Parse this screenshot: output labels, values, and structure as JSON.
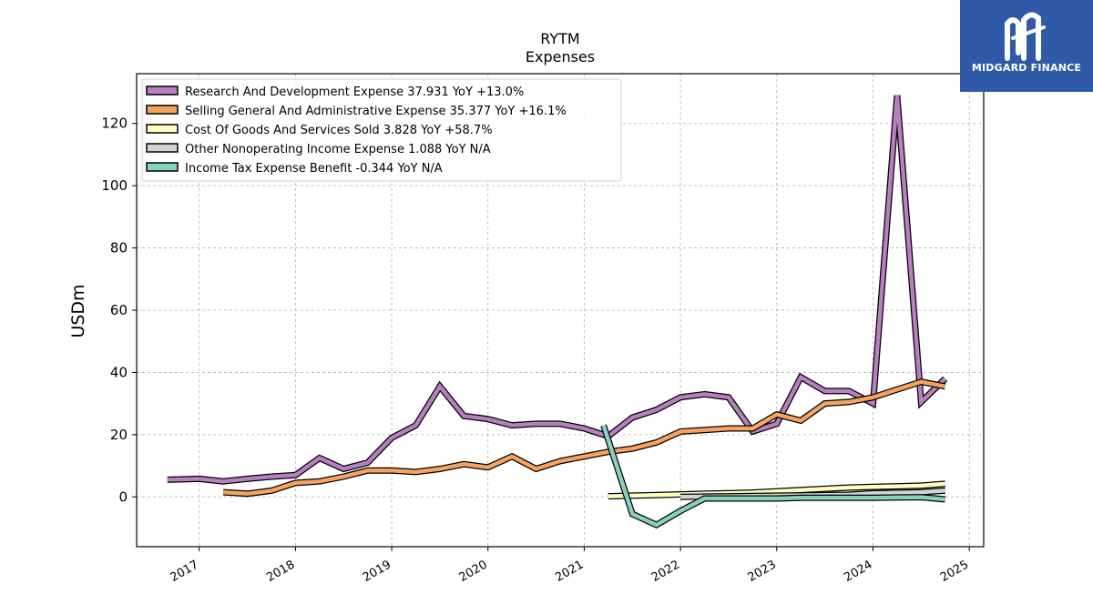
{
  "logo": {
    "text": "MIDGARD FINANCE",
    "background": "#2f5aa8"
  },
  "chart_data": {
    "type": "line",
    "title": "RYTM",
    "subtitle": "Expenses",
    "xlabel": "",
    "ylabel": "USDm",
    "xlim": [
      2016.35,
      2025.15
    ],
    "ylim": [
      -16,
      136
    ],
    "x_ticks": [
      2017,
      2018,
      2019,
      2020,
      2021,
      2022,
      2023,
      2024,
      2025
    ],
    "x_tick_labels": [
      "2017",
      "2018",
      "2019",
      "2020",
      "2021",
      "2022",
      "2023",
      "2024",
      "2025"
    ],
    "y_ticks": [
      0,
      20,
      40,
      60,
      80,
      100,
      120
    ],
    "y_tick_labels": [
      "0",
      "20",
      "40",
      "60",
      "80",
      "100",
      "120"
    ],
    "grid": true,
    "legend_position": "top-left",
    "series": [
      {
        "name": "Research And Development Expense",
        "legend_label": "Research And Development Expense  37.931 YoY +13.0%",
        "color": "#b77fbf",
        "x": [
          2016.67,
          2017.0,
          2017.25,
          2017.5,
          2017.75,
          2018.0,
          2018.25,
          2018.5,
          2018.75,
          2019.0,
          2019.25,
          2019.5,
          2019.75,
          2020.0,
          2020.25,
          2020.5,
          2020.75,
          2021.0,
          2021.25,
          2021.5,
          2021.75,
          2022.0,
          2022.25,
          2022.5,
          2022.75,
          2023.0,
          2023.25,
          2023.5,
          2023.75,
          2024.0,
          2024.25,
          2024.5,
          2024.75
        ],
        "y": [
          5.5,
          5.8,
          5.0,
          5.8,
          6.5,
          7.0,
          12.5,
          9.0,
          11.0,
          19.0,
          23.0,
          35.5,
          26.0,
          25.0,
          23.0,
          23.5,
          23.5,
          22.0,
          19.5,
          25.5,
          28.0,
          32.0,
          33.0,
          32.0,
          21.0,
          23.5,
          38.5,
          34.0,
          34.0,
          30.0,
          129.0,
          30.5,
          38.0
        ]
      },
      {
        "name": "Selling General And Administrative Expense",
        "legend_label": "Selling General And Administrative Expense  35.377 YoY +16.1%",
        "color": "#f4a460",
        "x": [
          2017.25,
          2017.5,
          2017.75,
          2018.0,
          2018.25,
          2018.5,
          2018.75,
          2019.0,
          2019.25,
          2019.5,
          2019.75,
          2020.0,
          2020.25,
          2020.5,
          2020.75,
          2021.0,
          2021.25,
          2021.5,
          2021.75,
          2022.0,
          2022.25,
          2022.5,
          2022.75,
          2023.0,
          2023.25,
          2023.5,
          2023.75,
          2024.0,
          2024.25,
          2024.5,
          2024.75
        ],
        "y": [
          1.5,
          1.0,
          2.0,
          4.5,
          5.0,
          6.5,
          8.5,
          8.5,
          8.0,
          9.0,
          10.5,
          9.5,
          13.0,
          9.0,
          11.5,
          13.0,
          14.5,
          15.5,
          17.5,
          21.0,
          21.5,
          22.0,
          22.0,
          26.5,
          24.5,
          30.0,
          30.5,
          32.0,
          34.5,
          37.0,
          35.5
        ]
      },
      {
        "name": "Cost Of Goods And Services Sold",
        "legend_label": "Cost Of Goods And Services Sold  3.828 YoY +58.7%",
        "color": "#ffffc0",
        "x": [
          2021.25,
          2021.5,
          2021.75,
          2022.0,
          2022.25,
          2022.5,
          2022.75,
          2023.0,
          2023.25,
          2023.5,
          2023.75,
          2024.0,
          2024.25,
          2024.5,
          2024.75
        ],
        "y": [
          0.2,
          0.4,
          0.6,
          0.8,
          1.0,
          1.2,
          1.4,
          1.8,
          2.2,
          2.6,
          3.0,
          3.2,
          3.4,
          3.6,
          4.2
        ]
      },
      {
        "name": "Other Nonoperating Income Expense",
        "legend_label": "Other Nonoperating Income Expense  1.088 YoY N/A",
        "color": "#d3d3d3",
        "x": [
          2022.0,
          2022.25,
          2022.5,
          2022.75,
          2023.0,
          2023.25,
          2023.5,
          2023.75,
          2024.0,
          2024.25,
          2024.5,
          2024.75
        ],
        "y": [
          0.0,
          0.1,
          0.2,
          0.3,
          0.4,
          0.5,
          0.6,
          0.7,
          1.2,
          1.3,
          1.5,
          2.0
        ]
      },
      {
        "name": "Income Tax Expense Benefit",
        "legend_label": "Income Tax Expense Benefit  -0.344 YoY N/A",
        "color": "#88d0c0",
        "x": [
          2021.2,
          2021.5,
          2021.75,
          2022.0,
          2022.25,
          2022.5,
          2022.75,
          2023.0,
          2023.25,
          2023.5,
          2023.75,
          2024.0,
          2024.25,
          2024.5,
          2024.75
        ],
        "y": [
          23.0,
          -5.5,
          -9.0,
          -4.5,
          -0.5,
          -0.5,
          -0.5,
          -0.5,
          -0.3,
          -0.3,
          -0.3,
          -0.3,
          -0.2,
          -0.1,
          -0.8
        ]
      }
    ]
  }
}
